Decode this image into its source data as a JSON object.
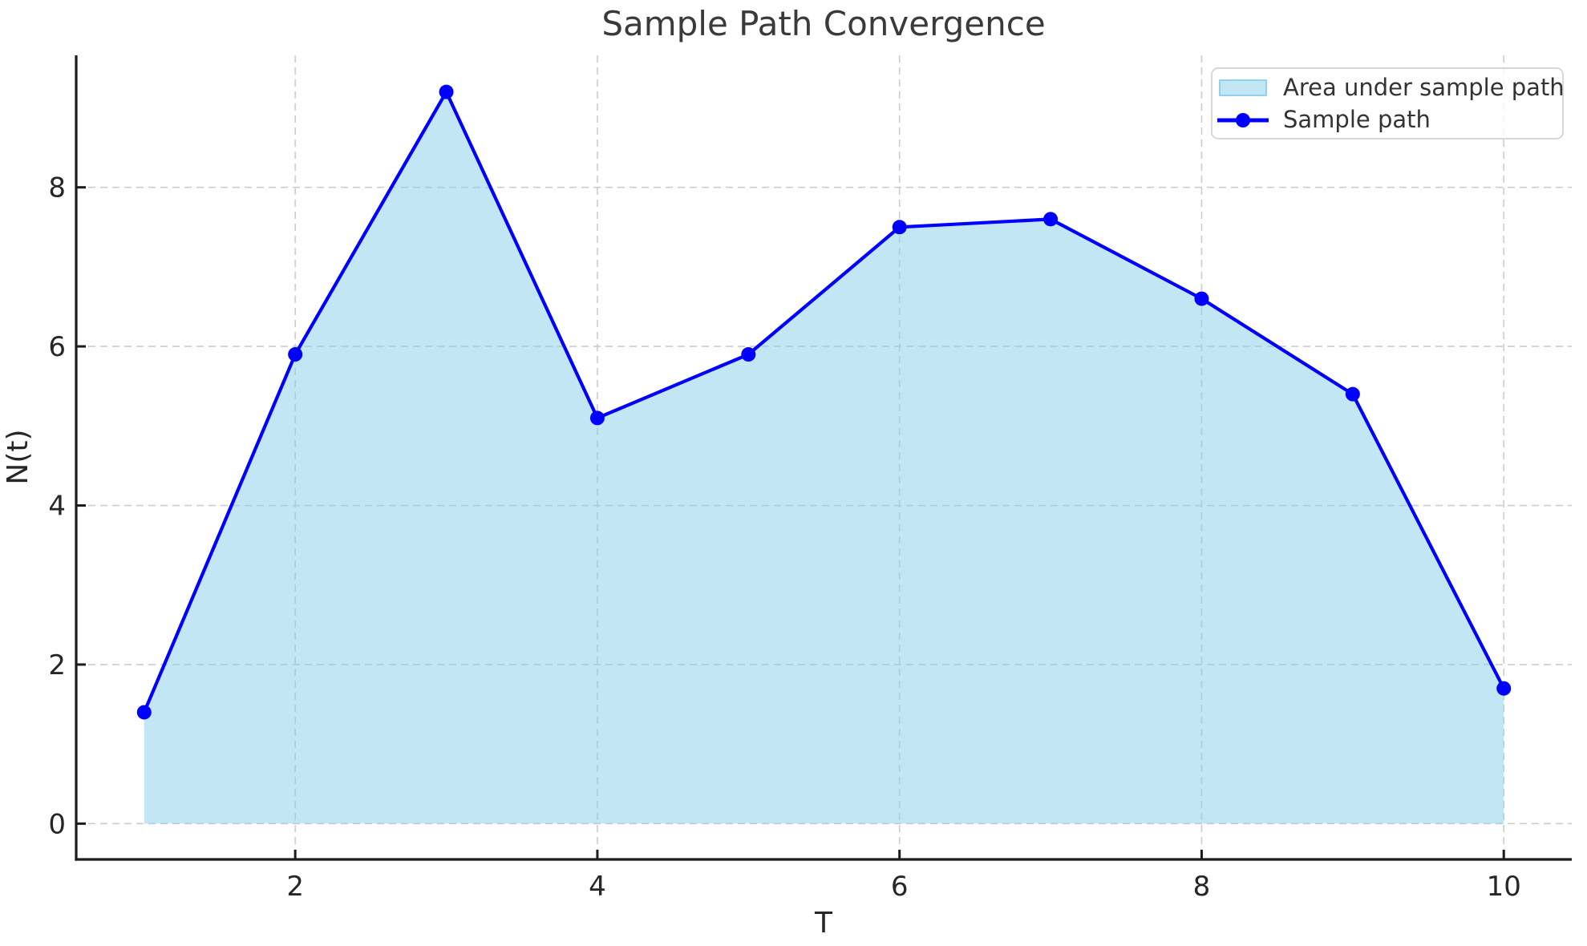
{
  "chart_data": {
    "type": "line",
    "title": "Sample Path Convergence",
    "xlabel": "T",
    "ylabel": "N(t)",
    "x": [
      1,
      2,
      3,
      4,
      5,
      6,
      7,
      8,
      9,
      10
    ],
    "series": [
      {
        "name": "Sample path",
        "values": [
          1.4,
          5.9,
          9.2,
          5.1,
          5.9,
          7.5,
          7.6,
          6.6,
          5.4,
          1.7
        ]
      }
    ],
    "area": {
      "label": "Area under sample path",
      "baseline": 0,
      "x_start": 1,
      "x_end": 10
    },
    "x_ticks": [
      2,
      4,
      6,
      8,
      10
    ],
    "y_ticks": [
      0,
      2,
      4,
      6,
      8
    ],
    "xlim": [
      0.55,
      10.45
    ],
    "ylim": [
      -0.45,
      9.66
    ],
    "grid": "dashed",
    "legend_position": "upper-right",
    "legend_entries": [
      {
        "label": "Area under sample path",
        "swatch": "area-patch"
      },
      {
        "label": "Sample path",
        "swatch": "line-marker"
      }
    ],
    "colors": {
      "line": "#0000ff",
      "marker": "#0000ff",
      "area_fill": "#87ceeb",
      "area_fill_alpha": 0.5,
      "grid": "#cccccc",
      "spine": "#1c1c1c",
      "tick_text": "#262626",
      "title_text": "#3a3a3a",
      "legend_border": "#cccccc"
    }
  }
}
